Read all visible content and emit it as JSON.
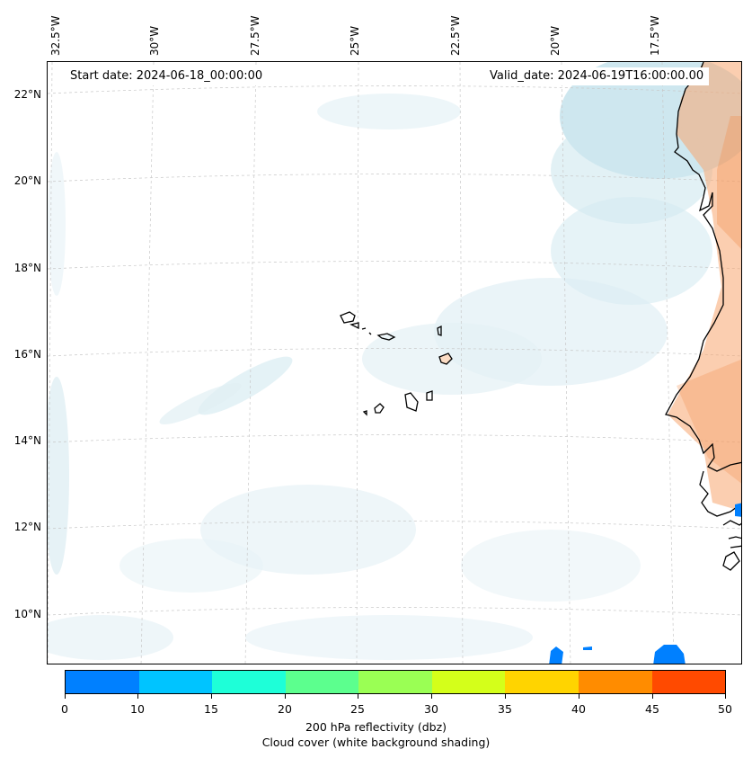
{
  "map": {
    "lon_labels": [
      "32.5°W",
      "30°W",
      "27.5°W",
      "25°W",
      "22.5°W",
      "20°W",
      "17.5°W"
    ],
    "lat_labels": [
      "22°N",
      "20°N",
      "18°N",
      "16°N",
      "14°N",
      "12°N",
      "10°N"
    ],
    "start_date": "Start date: 2024-06-18_00:00:00",
    "valid_date": "Valid_date: 2024-06-19T16:00:00.00"
  },
  "colorbar": {
    "ticks": [
      "0",
      "10",
      "15",
      "20",
      "25",
      "30",
      "35",
      "40",
      "45",
      "50"
    ],
    "colors": [
      "#0080ff",
      "#00c4ff",
      "#1effd8",
      "#5cff8e",
      "#9aff54",
      "#d4ff1a",
      "#ffd400",
      "#ff8c00",
      "#ff4a00"
    ],
    "title": "200 hPa reflectivity (dbz)",
    "subtitle": "Cloud cover (white background shading)"
  },
  "colors": {
    "cloud": "#b9dde8",
    "land_warm": "#f7a670",
    "reflectivity_blue": "#0080ff",
    "coast": "#000000"
  }
}
